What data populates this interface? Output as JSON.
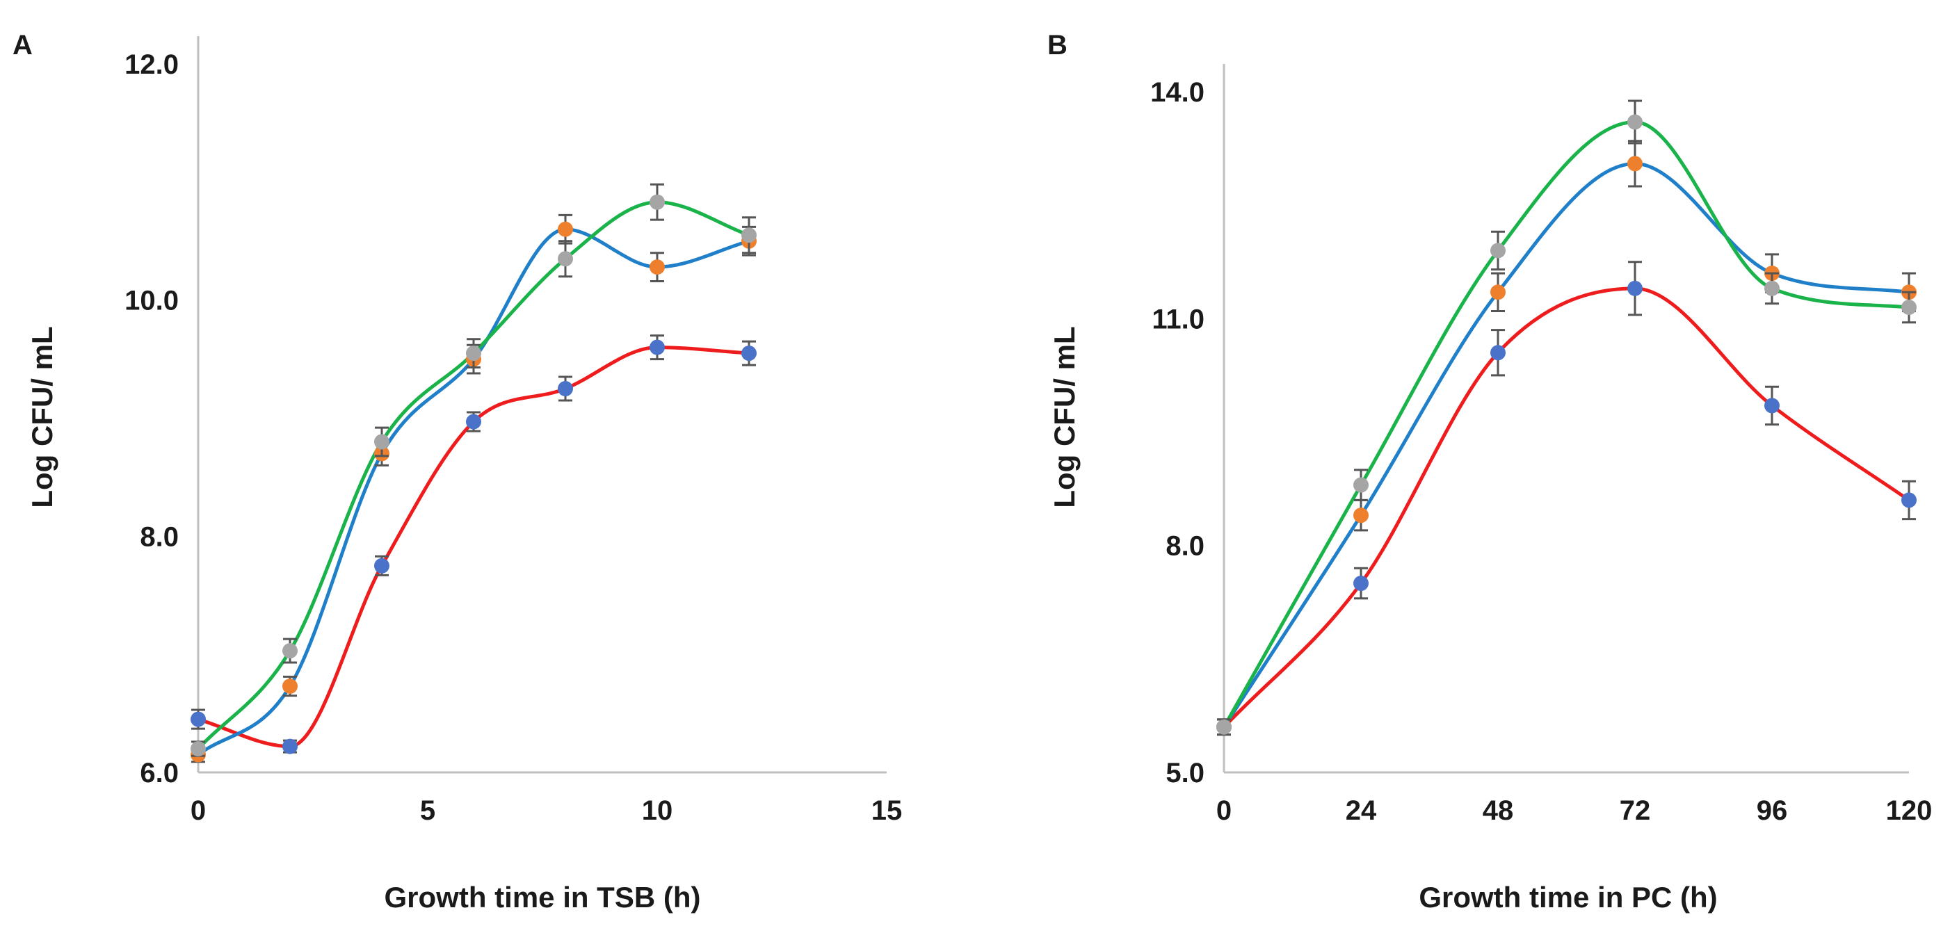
{
  "colors": {
    "red_line": "#ee1c1c",
    "blue_line": "#1f7fc9",
    "green_line": "#19b34a",
    "blue_point": "#4a72c9",
    "orange_point": "#ee7f2d",
    "gray_point": "#a5a5a5",
    "axis": "#bfbfbf",
    "errorbar": "#555555"
  },
  "chart_data": [
    {
      "panel": "A",
      "type": "scatter",
      "smooth_lines": true,
      "xlabel": "Growth time in TSB (h)",
      "ylabel": "Log CFU/ mL",
      "xlim": [
        0,
        15
      ],
      "ylim": [
        6.0,
        12.0
      ],
      "xticks": [
        0,
        5,
        10,
        15
      ],
      "xtick_labels": [
        "0",
        "5",
        "10",
        "15"
      ],
      "yticks": [
        6.0,
        8.0,
        10.0,
        12.0
      ],
      "ytick_labels": [
        "6.0",
        "8.0",
        "10.0",
        "12.0"
      ],
      "grid": false,
      "series": [
        {
          "name": "red",
          "line_color": "#ee1c1c",
          "point_color": "#4a72c9",
          "x": [
            0,
            2,
            4,
            6,
            8,
            10,
            12
          ],
          "values": [
            6.45,
            6.22,
            7.75,
            8.97,
            9.25,
            9.6,
            9.55
          ],
          "errors": [
            0.08,
            0.05,
            0.08,
            0.08,
            0.1,
            0.1,
            0.1
          ]
        },
        {
          "name": "blue",
          "line_color": "#1f7fc9",
          "point_color": "#ee7f2d",
          "x": [
            0,
            2,
            4,
            6,
            8,
            10,
            12
          ],
          "values": [
            6.15,
            6.73,
            8.7,
            9.5,
            10.6,
            10.28,
            10.5
          ],
          "errors": [
            0.06,
            0.08,
            0.1,
            0.12,
            0.12,
            0.12,
            0.12
          ]
        },
        {
          "name": "green",
          "line_color": "#19b34a",
          "point_color": "#a5a5a5",
          "x": [
            0,
            2,
            4,
            6,
            8,
            10,
            12
          ],
          "values": [
            6.2,
            7.03,
            8.8,
            9.55,
            10.35,
            10.83,
            10.55
          ],
          "errors": [
            0.06,
            0.1,
            0.12,
            0.12,
            0.15,
            0.15,
            0.15
          ]
        }
      ]
    },
    {
      "panel": "B",
      "type": "scatter",
      "smooth_lines": true,
      "xlabel": "Growth time in PC (h)",
      "ylabel": "Log CFU/ mL",
      "xlim": [
        0,
        120
      ],
      "ylim": [
        5.0,
        14.0
      ],
      "xticks": [
        0,
        24,
        48,
        72,
        96,
        120
      ],
      "xtick_labels": [
        "0",
        "24",
        "48",
        "72",
        "96",
        "120"
      ],
      "yticks": [
        5.0,
        8.0,
        11.0,
        14.0
      ],
      "ytick_labels": [
        "5.0",
        "8.0",
        "11.0",
        "14.0"
      ],
      "grid": false,
      "series": [
        {
          "name": "red",
          "line_color": "#ee1c1c",
          "point_color": "#4a72c9",
          "x": [
            0,
            24,
            48,
            72,
            96,
            120
          ],
          "values": [
            5.6,
            7.5,
            10.55,
            11.4,
            9.85,
            8.6
          ],
          "errors": [
            0.1,
            0.2,
            0.3,
            0.35,
            0.25,
            0.25
          ]
        },
        {
          "name": "blue",
          "line_color": "#1f7fc9",
          "point_color": "#ee7f2d",
          "x": [
            0,
            24,
            48,
            72,
            96,
            120
          ],
          "values": [
            5.6,
            8.4,
            11.35,
            13.05,
            11.6,
            11.35
          ],
          "errors": [
            0.1,
            0.2,
            0.25,
            0.3,
            0.25,
            0.25
          ]
        },
        {
          "name": "green",
          "line_color": "#19b34a",
          "point_color": "#a5a5a5",
          "x": [
            0,
            24,
            48,
            72,
            96,
            120
          ],
          "values": [
            5.6,
            8.8,
            11.9,
            13.6,
            11.4,
            11.15
          ],
          "errors": [
            0.1,
            0.2,
            0.25,
            0.28,
            0.2,
            0.2
          ]
        }
      ]
    }
  ]
}
